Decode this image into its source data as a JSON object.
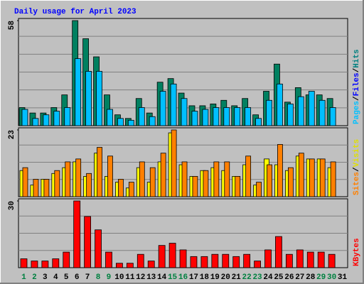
{
  "chart_data": {
    "type": "bar",
    "title": "Daily usage for April 2023",
    "categories": [
      "1",
      "2",
      "3",
      "4",
      "5",
      "6",
      "7",
      "8",
      "9",
      "10",
      "11",
      "12",
      "13",
      "14",
      "15",
      "16",
      "17",
      "18",
      "19",
      "20",
      "21",
      "22",
      "23",
      "24",
      "25",
      "26",
      "27",
      "28",
      "29",
      "30",
      "31"
    ],
    "category_colors": [
      "#008040",
      "#008040",
      "#000000",
      "#000000",
      "#000000",
      "#000000",
      "#000000",
      "#008040",
      "#008040",
      "#000000",
      "#000000",
      "#000000",
      "#000000",
      "#000000",
      "#008040",
      "#008040",
      "#000000",
      "#000000",
      "#000000",
      "#000000",
      "#000000",
      "#008040",
      "#008040",
      "#000000",
      "#000000",
      "#000000",
      "#000000",
      "#000000",
      "#008040",
      "#008040",
      "#000000"
    ],
    "panels": [
      {
        "ylim": [
          0,
          58
        ],
        "yticks": [
          58
        ],
        "grid": true,
        "label_parts": [
          {
            "text": "Pages",
            "color": "#00c0ff"
          },
          {
            "text": "/",
            "color": "#000000"
          },
          {
            "text": "Files",
            "color": "#0000ff"
          },
          {
            "text": "/",
            "color": "#000000"
          },
          {
            "text": "Hits",
            "color": "#008080"
          }
        ],
        "series": [
          {
            "name": "Hits",
            "color": "#008060",
            "values": [
              10,
              7,
              7,
              10,
              17,
              58,
              48,
              38,
              17,
              6,
              4,
              15,
              7,
              24,
              26,
              18,
              11,
              11,
              12,
              14,
              11,
              15,
              6,
              19,
              34,
              13,
              21,
              17,
              17,
              15,
              0
            ]
          },
          {
            "name": "Files",
            "color": "#00bfff",
            "values": [
              9,
              4,
              6,
              8,
              10,
              37,
              30,
              30,
              9,
              4,
              3,
              10,
              5,
              19,
              23,
              15,
              8,
              9,
              10,
              10,
              10,
              10,
              4,
              14,
              23,
              12,
              16,
              19,
              14,
              10,
              0
            ]
          }
        ]
      },
      {
        "ylim": [
          0,
          23
        ],
        "yticks": [
          23
        ],
        "grid": true,
        "label_parts": [
          {
            "text": "Sites",
            "color": "#ff8000"
          },
          {
            "text": "/",
            "color": "#000000"
          },
          {
            "text": "Visits",
            "color": "#e0e000"
          }
        ],
        "series": [
          {
            "name": "Visits",
            "color": "#ffff00",
            "values": [
              9,
              4,
              6,
              8,
              10,
              12,
              7,
              15,
              7,
              5,
              3,
              10,
              5,
              12,
              22,
              11,
              7,
              9,
              10,
              9,
              7,
              11,
              4,
              13,
              11,
              9,
              14,
              13,
              13,
              10,
              0
            ]
          },
          {
            "name": "Sites",
            "color": "#ff8000",
            "values": [
              10,
              6,
              6,
              9,
              12,
              13,
              8,
              17,
              14,
              6,
              5,
              12,
              10,
              15,
              23,
              12,
              7,
              9,
              12,
              12,
              7,
              14,
              5,
              11,
              18,
              10,
              15,
              13,
              13,
              12,
              0
            ]
          }
        ]
      },
      {
        "ylim": [
          0,
          30
        ],
        "yticks": [
          30
        ],
        "grid": true,
        "label_parts": [
          {
            "text": "KBytes",
            "color": "#ff0000"
          }
        ],
        "series": [
          {
            "name": "KBytes",
            "color": "#ff0000",
            "values": [
              4,
              3,
              3,
              4,
              7,
              30,
              23,
              17,
              7,
              2,
              2,
              6,
              3,
              10,
              11,
              8,
              5,
              5,
              6,
              6,
              5,
              6,
              3,
              8,
              14,
              6,
              8,
              7,
              7,
              6,
              0
            ]
          }
        ]
      }
    ]
  }
}
